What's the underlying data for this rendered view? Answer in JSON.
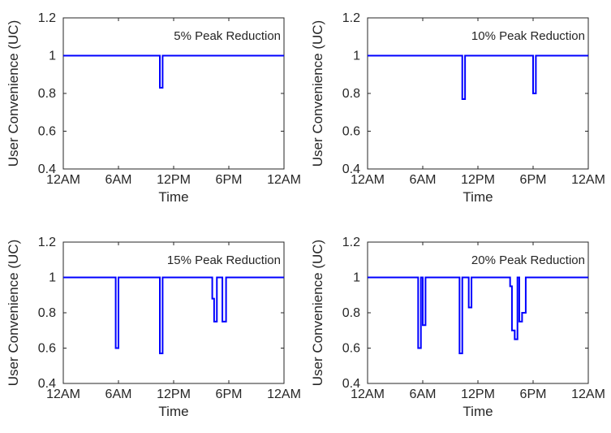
{
  "chart_data": [
    {
      "type": "line",
      "title": "5% Peak Reduction",
      "xlabel": "Time",
      "ylabel": "User Convenience (UC)",
      "x_ticks": [
        "12AM",
        "6AM",
        "12PM",
        "6PM",
        "12AM"
      ],
      "y_ticks": [
        "0.4",
        "0.6",
        "0.8",
        "1",
        "1.2"
      ],
      "xlim": [
        0,
        24
      ],
      "ylim": [
        0.4,
        1.2
      ],
      "grid": false,
      "series_color": "#0000ff",
      "series": [
        {
          "x": [
            0,
            10.5,
            10.5,
            10.8,
            10.8,
            24
          ],
          "y": [
            1,
            1,
            0.83,
            0.83,
            1,
            1
          ]
        }
      ]
    },
    {
      "type": "line",
      "title": "10% Peak Reduction",
      "xlabel": "Time",
      "ylabel": "User Convenience (UC)",
      "x_ticks": [
        "12AM",
        "6AM",
        "12PM",
        "6PM",
        "12AM"
      ],
      "y_ticks": [
        "0.4",
        "0.6",
        "0.8",
        "1",
        "1.2"
      ],
      "xlim": [
        0,
        24
      ],
      "ylim": [
        0.4,
        1.2
      ],
      "grid": false,
      "series_color": "#0000ff",
      "series": [
        {
          "x": [
            0,
            10.3,
            10.3,
            10.6,
            10.6,
            18.0,
            18.0,
            18.3,
            18.3,
            24
          ],
          "y": [
            1,
            1,
            0.77,
            0.77,
            1,
            1,
            0.8,
            0.8,
            1,
            1
          ]
        }
      ]
    },
    {
      "type": "line",
      "title": "15% Peak Reduction",
      "xlabel": "Time",
      "ylabel": "User Convenience (UC)",
      "x_ticks": [
        "12AM",
        "6AM",
        "12PM",
        "6PM",
        "12AM"
      ],
      "y_ticks": [
        "0.4",
        "0.6",
        "0.8",
        "1",
        "1.2"
      ],
      "xlim": [
        0,
        24
      ],
      "ylim": [
        0.4,
        1.2
      ],
      "grid": false,
      "series_color": "#0000ff",
      "series": [
        {
          "x": [
            0,
            5.7,
            5.7,
            6.0,
            6.0,
            10.5,
            10.5,
            10.8,
            10.8,
            16.2,
            16.2,
            16.4,
            16.4,
            16.7,
            16.7,
            17.3,
            17.3,
            17.7,
            17.7,
            24
          ],
          "y": [
            1,
            1,
            0.6,
            0.6,
            1,
            1,
            0.57,
            0.57,
            1,
            1,
            0.88,
            0.88,
            0.75,
            0.75,
            1,
            1,
            0.75,
            0.75,
            1,
            1
          ]
        }
      ]
    },
    {
      "type": "line",
      "title": "20% Peak Reduction",
      "xlabel": "Time",
      "ylabel": "User Convenience (UC)",
      "x_ticks": [
        "12AM",
        "6AM",
        "12PM",
        "6PM",
        "12AM"
      ],
      "y_ticks": [
        "0.4",
        "0.6",
        "0.8",
        "1",
        "1.2"
      ],
      "xlim": [
        0,
        24
      ],
      "ylim": [
        0.4,
        1.2
      ],
      "grid": false,
      "series_color": "#0000ff",
      "series": [
        {
          "x": [
            0,
            5.5,
            5.5,
            5.8,
            5.8,
            6.0,
            6.0,
            6.3,
            6.3,
            10.0,
            10.0,
            10.3,
            10.3,
            11.0,
            11.0,
            11.3,
            11.3,
            15.5,
            15.5,
            15.7,
            15.7,
            16.0,
            16.0,
            16.3,
            16.3,
            16.5,
            16.5,
            16.8,
            16.8,
            17.2,
            17.2,
            17.5,
            17.5,
            17.8,
            17.8,
            24
          ],
          "y": [
            1,
            1,
            0.6,
            0.6,
            1,
            1,
            0.73,
            0.73,
            1,
            1,
            0.57,
            0.57,
            1,
            1,
            0.83,
            0.83,
            1,
            1,
            0.95,
            0.95,
            0.7,
            0.7,
            0.65,
            0.65,
            1,
            1,
            0.75,
            0.75,
            0.8,
            0.8,
            1,
            1,
            1,
            1,
            1,
            1
          ]
        }
      ]
    }
  ]
}
